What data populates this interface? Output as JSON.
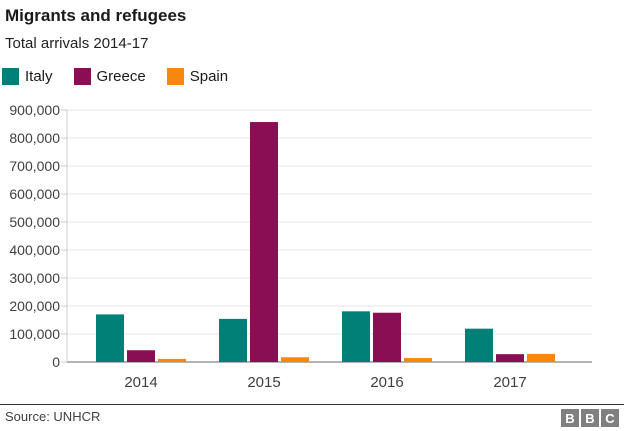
{
  "header": {
    "title": "Migrants and refugees",
    "subtitle": "Total arrivals 2014-17"
  },
  "legend": [
    {
      "label": "Italy",
      "color": "#008077"
    },
    {
      "label": "Greece",
      "color": "#8A0E53"
    },
    {
      "label": "Spain",
      "color": "#F8870E"
    }
  ],
  "chart_data": {
    "type": "bar",
    "title": "Migrants and refugees",
    "subtitle": "Total arrivals 2014-17",
    "categories": [
      "2014",
      "2015",
      "2016",
      "2017"
    ],
    "series": [
      {
        "name": "Italy",
        "color": "#008077",
        "values": [
          170000,
          154000,
          181000,
          119000
        ]
      },
      {
        "name": "Greece",
        "color": "#8A0E53",
        "values": [
          42000,
          857000,
          176000,
          28000
        ]
      },
      {
        "name": "Spain",
        "color": "#F8870E",
        "values": [
          11000,
          17000,
          14000,
          29000
        ]
      }
    ],
    "xlabel": "",
    "ylabel": "",
    "ylim": [
      0,
      900000
    ],
    "ytick_step": 100000,
    "ytick_labels": [
      "0",
      "100,000",
      "200,000",
      "300,000",
      "400,000",
      "500,000",
      "600,000",
      "700,000",
      "800,000",
      "900,000"
    ],
    "grid": true,
    "legend_position": "top"
  },
  "footer": {
    "source": "Source: UNHCR",
    "logo_letters": [
      "B",
      "B",
      "C"
    ]
  },
  "colors": {
    "grid": "#e6e6e6",
    "baseline": "#b3b3b3",
    "axis": "#cccccc",
    "axis_text": "#404040",
    "title_text": "#1a1a1a",
    "separator": "#333333",
    "logo_bg": "#7f7f7f"
  }
}
